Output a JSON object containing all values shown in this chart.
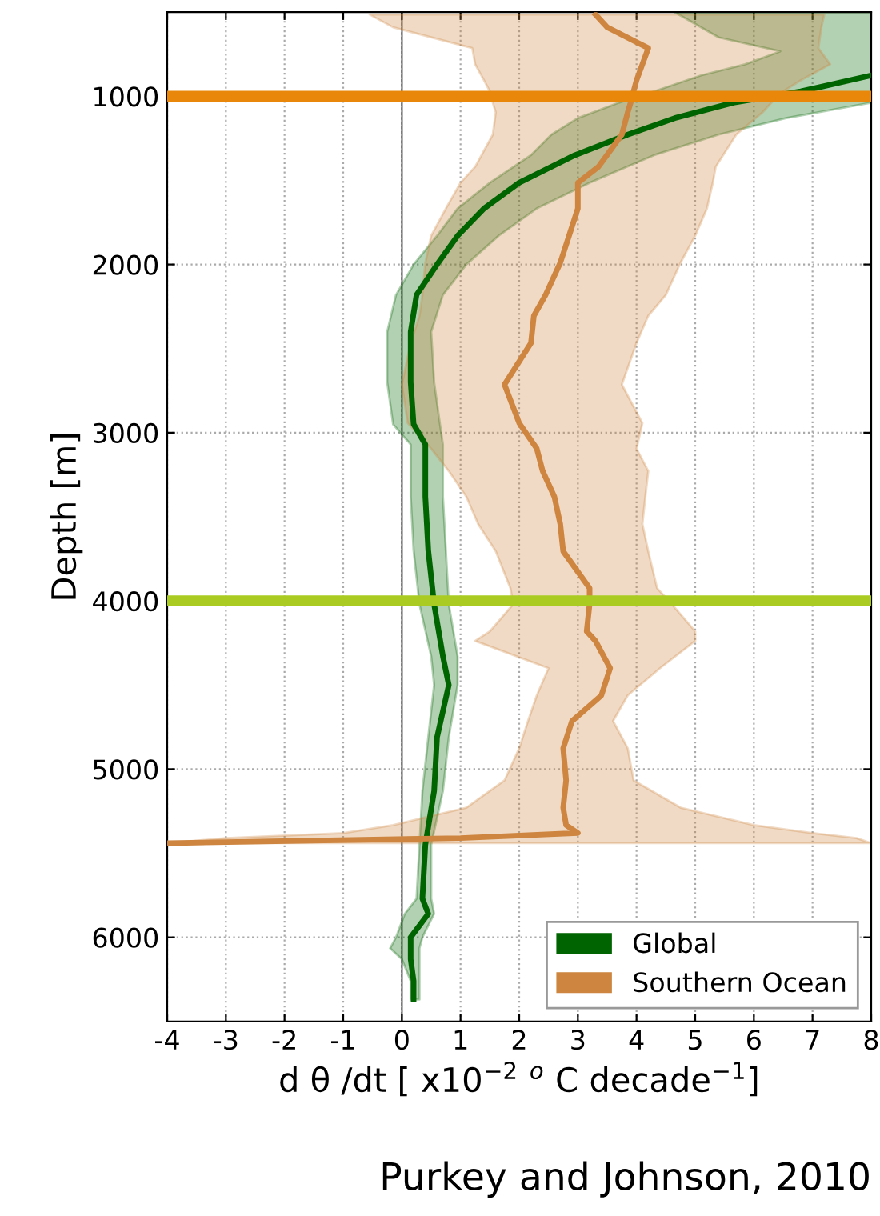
{
  "chart_data": {
    "type": "line",
    "orientation": "horizontal",
    "xlabel": "d θ /dt [ x10$^{−2}$ $^{o}$ C decade$^{−1}$]",
    "ylabel": "Depth [m]",
    "xlim": [
      -4,
      8
    ],
    "xticks": [
      -4,
      -3,
      -2,
      -1,
      0,
      1,
      2,
      3,
      4,
      5,
      6,
      7,
      8
    ],
    "ylim": [
      6500,
      500
    ],
    "yticks": [
      1000,
      2000,
      3000,
      4000,
      5000,
      6000
    ],
    "grid": true,
    "legend": "bottom right",
    "series": [
      {
        "name": "Global",
        "color": "#006400",
        "x": [
          500,
          650,
          733,
          810,
          876,
          971,
          1038,
          1130,
          1228,
          1350,
          1514,
          1667,
          1829,
          2000,
          2181,
          2400,
          2700,
          2950,
          3070,
          3380,
          3700,
          4020,
          4330,
          4500,
          4810,
          5130,
          5450,
          5770,
          5860,
          6000,
          6065,
          6130,
          6260,
          6370
        ],
        "values": [
          null,
          null,
          null,
          null,
          8.0,
          6.8,
          5.65,
          4.65,
          3.85,
          2.95,
          2.0,
          1.4,
          0.95,
          0.6,
          0.25,
          0.15,
          0.15,
          0.2,
          0.4,
          0.4,
          0.45,
          0.55,
          0.7,
          0.8,
          0.6,
          0.55,
          0.4,
          0.35,
          0.45,
          0.15,
          0.15,
          0.15,
          0.2,
          0.2
        ],
        "lower": [
          4.65,
          5.4,
          6.45,
          5.85,
          5.1,
          4.3,
          3.7,
          3.0,
          2.55,
          2.2,
          1.5,
          0.95,
          0.6,
          0.2,
          -0.1,
          -0.25,
          -0.25,
          -0.15,
          0.15,
          0.15,
          0.2,
          0.3,
          0.5,
          0.55,
          0.45,
          0.35,
          0.3,
          0.25,
          0.05,
          -0.1,
          -0.2,
          0.0,
          0.15,
          0.15
        ],
        "upper": [
          8,
          8,
          8,
          8,
          8,
          8,
          8,
          6.55,
          5.4,
          4.3,
          3.2,
          2.3,
          1.65,
          1.1,
          0.7,
          0.5,
          0.55,
          0.65,
          0.7,
          0.7,
          0.75,
          0.8,
          0.95,
          0.95,
          0.8,
          0.7,
          0.5,
          0.5,
          0.55,
          0.35,
          0.3,
          0.3,
          0.3,
          0.3
        ]
      },
      {
        "name": "Southern Ocean",
        "color": "#cd853f",
        "x": [
          514,
          590,
          714,
          810,
          905,
          971,
          1038,
          1095,
          1228,
          1419,
          1514,
          1667,
          1829,
          1990,
          2181,
          2305,
          2467,
          2714,
          2943,
          3095,
          3228,
          3381,
          3543,
          3705,
          3924,
          4019,
          4181,
          4238,
          4400,
          4562,
          4714,
          4876,
          5067,
          5229,
          5333,
          5380,
          5410,
          5440
        ],
        "values": [
          3.3,
          3.5,
          4.2,
          4.1,
          4.0,
          3.95,
          3.9,
          3.85,
          3.75,
          3.35,
          3.0,
          3.0,
          2.85,
          2.7,
          2.45,
          2.25,
          2.2,
          1.75,
          2.0,
          2.3,
          2.4,
          2.6,
          2.7,
          2.75,
          3.2,
          3.2,
          3.15,
          3.3,
          3.55,
          3.4,
          2.9,
          2.75,
          2.8,
          2.75,
          2.8,
          3.0,
          1.0,
          -4
        ],
        "lower": [
          -0.55,
          -0.15,
          1.2,
          1.25,
          1.4,
          1.5,
          1.55,
          1.6,
          1.55,
          1.25,
          1.0,
          0.75,
          0.5,
          0.4,
          0.35,
          0.3,
          0.15,
          0.0,
          0.1,
          0.5,
          0.8,
          1.1,
          1.3,
          1.6,
          1.85,
          1.9,
          1.5,
          1.25,
          2.5,
          2.3,
          2.15,
          2.0,
          1.75,
          1.1,
          -0.15,
          -1.0,
          -3.0,
          -4
        ],
        "upper": [
          7.2,
          7.15,
          7.1,
          7.3,
          6.8,
          6.5,
          6.3,
          6.15,
          5.7,
          5.35,
          5.3,
          5.2,
          5.0,
          4.75,
          4.5,
          4.2,
          4.0,
          3.75,
          4.1,
          4.0,
          4.2,
          4.15,
          4.1,
          4.2,
          4.35,
          4.6,
          5.0,
          5.0,
          4.4,
          3.85,
          3.6,
          3.85,
          3.95,
          4.75,
          6.0,
          7.0,
          7.75,
          8
        ]
      }
    ],
    "ref_lines": [
      {
        "axis": "y",
        "value": 1000,
        "color": "#e8870a"
      },
      {
        "axis": "y",
        "value": 4000,
        "color": "#aacc22"
      }
    ],
    "annotations": [
      "Purkey and Johnson, 2010"
    ]
  }
}
